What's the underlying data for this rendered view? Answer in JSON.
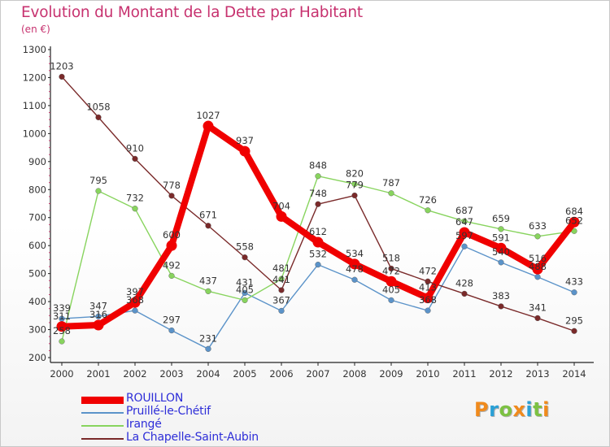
{
  "page": {
    "title": "Evolution du Montant de la Dette par Habitant",
    "unit": "(en €)"
  },
  "brand": {
    "text": "Proxiti",
    "letter_colors": [
      "#f08a1c",
      "#2aa0d6",
      "#7cc142",
      "#f08a1c",
      "#2aa0d6",
      "#7cc142",
      "#f08a1c"
    ]
  },
  "chart_data": {
    "type": "line",
    "title": "Evolution du Montant de la Dette par Habitant",
    "subtitle": "(en €)",
    "x": [
      2000,
      2001,
      2002,
      2003,
      2004,
      2005,
      2006,
      2007,
      2008,
      2009,
      2010,
      2011,
      2012,
      2013,
      2014
    ],
    "ylim": [
      200,
      1300
    ],
    "yticks": [
      200,
      300,
      400,
      500,
      600,
      700,
      800,
      900,
      1000,
      1100,
      1200,
      1300
    ],
    "grid": false,
    "legend_position": "bottom-left",
    "series": [
      {
        "name": "ROUILLON",
        "color": "#f00000",
        "emphasis": true,
        "values": [
          311,
          316,
          397,
          600,
          1027,
          937,
          704,
          612,
          534,
          472,
          413,
          647,
          591,
          516,
          684
        ],
        "labels": [
          "311",
          "316",
          "397",
          "600",
          "1027",
          "937",
          "704",
          "612",
          "534",
          "472",
          "413",
          "647",
          "591",
          "516",
          "684"
        ]
      },
      {
        "name": "Pruillé-le-Chétif",
        "color": "#5b93c9",
        "values": [
          339,
          347,
          368,
          297,
          231,
          431,
          367,
          532,
          478,
          405,
          368,
          597,
          540,
          488,
          433
        ],
        "labels": [
          "339",
          "347",
          "368",
          "297",
          "231",
          "431",
          "367",
          "532",
          "478",
          "405",
          "368",
          "597",
          "540",
          "488",
          "433"
        ]
      },
      {
        "name": "Irangé",
        "color": "#88d45e",
        "values": [
          258,
          795,
          732,
          492,
          437,
          405,
          481,
          848,
          820,
          787,
          726,
          687,
          659,
          633,
          652
        ],
        "labels": [
          "258",
          "795",
          "732",
          "492",
          "437",
          "405",
          "481",
          "848",
          "820",
          "787",
          "726",
          "687",
          "659",
          "633",
          "652"
        ]
      },
      {
        "name": "La Chapelle-Saint-Aubin",
        "color": "#7a2a2a",
        "values": [
          1203,
          1058,
          910,
          778,
          671,
          558,
          441,
          748,
          779,
          518,
          472,
          428,
          383,
          341,
          295
        ],
        "labels": [
          "1203",
          "1058",
          "910",
          "778",
          "671",
          "558",
          "441",
          "748",
          "779",
          "518",
          "472",
          "428",
          "383",
          "341",
          "295"
        ]
      }
    ]
  }
}
